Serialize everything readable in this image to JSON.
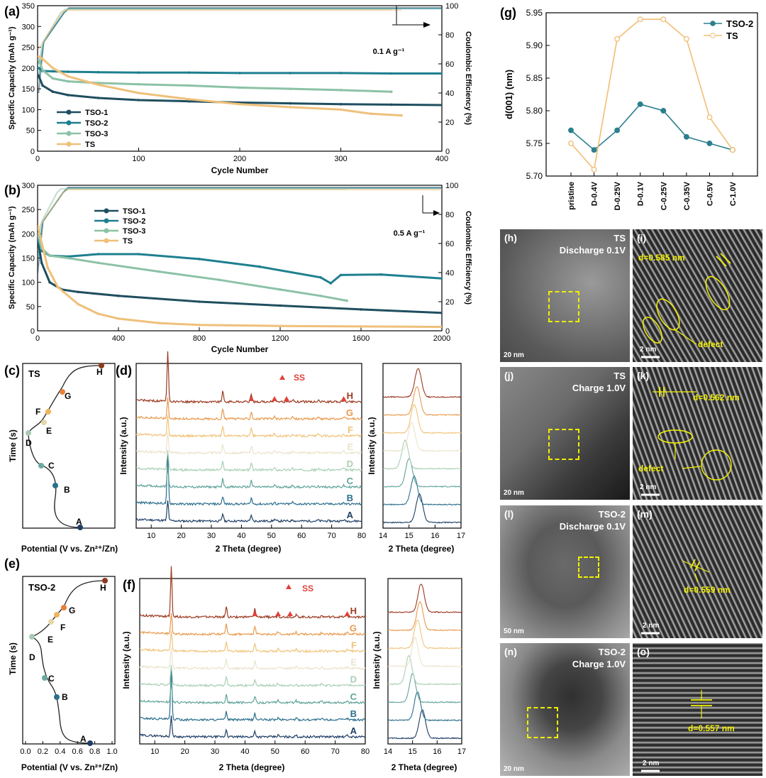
{
  "chart_data": [
    {
      "panel": "a",
      "type": "line",
      "xlabel": "Cycle Number",
      "ylabel": "Specific Capacity (mAh g⁻¹)",
      "ylabel_right": "Coulombic Efficiency (%)",
      "xlim": [
        0,
        400
      ],
      "ylim": [
        0,
        350
      ],
      "ylim_right": [
        0,
        100
      ],
      "xticks": [
        "0",
        "100",
        "200",
        "300",
        "400"
      ],
      "yticks": [
        "0",
        "50",
        "100",
        "150",
        "200",
        "250",
        "300",
        "350"
      ],
      "yticks_right": [
        "0",
        "20",
        "40",
        "60",
        "80",
        "100"
      ],
      "annotation": "0.1 A g⁻¹",
      "series": [
        {
          "name": "TSO-1",
          "color": "#1f4e5f",
          "x": [
            1,
            5,
            15,
            30,
            60,
            100,
            150,
            200,
            250,
            300,
            350,
            400
          ],
          "y": [
            182,
            158,
            143,
            135,
            128,
            123,
            120,
            117,
            115,
            113,
            112,
            111
          ]
        },
        {
          "name": "TSO-2",
          "color": "#1e7f8f",
          "x": [
            1,
            5,
            15,
            30,
            60,
            100,
            150,
            200,
            250,
            300,
            350,
            400
          ],
          "y": [
            200,
            193,
            192,
            191,
            190,
            189,
            189,
            188,
            188,
            188,
            187,
            187
          ]
        },
        {
          "name": "TSO-3",
          "color": "#8cc2a6",
          "x": [
            1,
            5,
            15,
            30,
            60,
            100,
            150,
            200,
            250,
            300,
            350
          ],
          "y": [
            220,
            195,
            175,
            168,
            164,
            161,
            158,
            153,
            150,
            147,
            143
          ]
        },
        {
          "name": "TS",
          "color": "#efc07a",
          "x": [
            1,
            5,
            15,
            30,
            60,
            100,
            150,
            200,
            250,
            300,
            330,
            360
          ],
          "y": [
            228,
            222,
            200,
            180,
            160,
            140,
            125,
            113,
            106,
            100,
            90,
            86
          ]
        }
      ]
    },
    {
      "panel": "b",
      "type": "line",
      "xlabel": "Cycle Number",
      "ylabel": "Specific Capacity (mAh g⁻¹)",
      "ylabel_right": "Coulombic Efficiency (%)",
      "xlim": [
        0,
        2000
      ],
      "ylim": [
        0,
        300
      ],
      "ylim_right": [
        0,
        100
      ],
      "xticks": [
        "0",
        "400",
        "800",
        "1200",
        "1600",
        "2000"
      ],
      "yticks": [
        "0",
        "50",
        "100",
        "150",
        "200",
        "250",
        "300"
      ],
      "yticks_right": [
        "0",
        "20",
        "40",
        "60",
        "80",
        "100"
      ],
      "annotation": "0.5 A g⁻¹",
      "series": [
        {
          "name": "TSO-1",
          "color": "#1f4e5f",
          "x": [
            1,
            20,
            60,
            120,
            200,
            400,
            800,
            1200,
            1600,
            2000
          ],
          "y": [
            190,
            140,
            100,
            85,
            80,
            72,
            60,
            52,
            44,
            37
          ]
        },
        {
          "name": "TSO-2",
          "color": "#1e7f8f",
          "x": [
            1,
            20,
            60,
            150,
            300,
            500,
            800,
            1100,
            1400,
            1450,
            1500,
            1700,
            2000
          ],
          "y": [
            190,
            165,
            155,
            153,
            158,
            158,
            148,
            132,
            110,
            98,
            115,
            116,
            108
          ]
        },
        {
          "name": "TSO-3",
          "color": "#8cc2a6",
          "x": [
            1,
            20,
            60,
            150,
            300,
            600,
            900,
            1200,
            1400,
            1530
          ],
          "y": [
            200,
            170,
            155,
            150,
            140,
            122,
            105,
            85,
            72,
            62
          ]
        },
        {
          "name": "TS",
          "color": "#efc07a",
          "x": [
            1,
            50,
            100,
            200,
            300,
            400,
            600,
            800,
            1200,
            1600,
            2000
          ],
          "y": [
            215,
            130,
            90,
            55,
            35,
            25,
            16,
            12,
            10,
            9,
            8
          ]
        }
      ]
    },
    {
      "panel": "c",
      "type": "line",
      "title": "TS",
      "xlabel": "Potential (V vs. Zn²⁺/Zn)",
      "ylabel": "Time (s)",
      "points": [
        "A",
        "B",
        "C",
        "D",
        "E",
        "F",
        "G",
        "H"
      ]
    },
    {
      "panel": "d",
      "type": "line",
      "xlabel": "2 Theta (degree)",
      "ylabel": "Intensity (a.u.)",
      "xlim": [
        5,
        80
      ],
      "xticks": [
        "10",
        "20",
        "30",
        "40",
        "50",
        "60",
        "70",
        "80"
      ],
      "legend": "SS",
      "traces": [
        "A",
        "B",
        "C",
        "D",
        "E",
        "F",
        "G",
        "H"
      ],
      "inset": {
        "xlabel": "2 Theta (degree)",
        "ylabel": "Intensity (a.u.)",
        "xlim": [
          14,
          17
        ],
        "xticks": [
          "14",
          "15",
          "16",
          "17"
        ]
      }
    },
    {
      "panel": "e",
      "type": "line",
      "title": "TSO-2",
      "xlabel": "Potential (V vs. Zn²⁺/Zn)",
      "ylabel": "Time (s)",
      "xticks": [
        "0.0",
        "0.2",
        "0.4",
        "0.6",
        "0.8",
        "1.0"
      ],
      "points": [
        "A",
        "B",
        "C",
        "D",
        "E",
        "F",
        "G",
        "H"
      ]
    },
    {
      "panel": "f",
      "type": "line",
      "xlabel": "2 Theta (degree)",
      "ylabel": "Intensity (a.u.)",
      "xlim": [
        5,
        80
      ],
      "xticks": [
        "10",
        "20",
        "30",
        "40",
        "50",
        "60",
        "70",
        "80"
      ],
      "legend": "SS",
      "traces": [
        "A",
        "B",
        "C",
        "D",
        "E",
        "F",
        "G",
        "H"
      ],
      "inset": {
        "xlabel": "2 Theta (degree)",
        "ylabel": "Intensity (a.u.)",
        "xlim": [
          14,
          17
        ],
        "xticks": [
          "14",
          "15",
          "16",
          "17"
        ]
      }
    },
    {
      "panel": "g",
      "type": "line",
      "ylabel": "d(001) (nm)",
      "categories": [
        "pristine",
        "D-0.4V",
        "D-0.25V",
        "D-0.1V",
        "C-0.25V",
        "C-0.35V",
        "C-0.5V",
        "C-1.0V"
      ],
      "ylim": [
        5.7,
        5.95
      ],
      "yticks": [
        "5.70",
        "5.75",
        "5.80",
        "5.85",
        "5.90",
        "5.95"
      ],
      "series": [
        {
          "name": "TSO-2",
          "color": "#2b7f8e",
          "values": [
            5.77,
            5.74,
            5.77,
            5.81,
            5.8,
            5.76,
            5.75,
            5.74
          ]
        },
        {
          "name": "TS",
          "color": "#f2bd73",
          "values": [
            5.75,
            5.71,
            5.91,
            5.94,
            5.94,
            5.91,
            5.79,
            5.74
          ]
        }
      ]
    }
  ],
  "tem": {
    "h": {
      "label": "(h)",
      "caption_line1": "TS",
      "caption_line2": "Discharge 0.1V",
      "scalebar": "20 nm"
    },
    "i": {
      "label": "(i)",
      "d_label": "d=0.585 nm",
      "defect": "defect",
      "scalebar": "2 nm"
    },
    "j": {
      "label": "(j)",
      "caption_line1": "TS",
      "caption_line2": "Charge 1.0V",
      "scalebar": "20 nm"
    },
    "k": {
      "label": "(k)",
      "d_label": "d=0.562 nm",
      "defect": "defect",
      "scalebar": "2 nm"
    },
    "l": {
      "label": "(l)",
      "caption_line1": "TSO-2",
      "caption_line2": "Discharge 0.1V",
      "scalebar": "50 nm"
    },
    "m": {
      "label": "(m)",
      "d_label": "d=0.559 nm",
      "scalebar": "2 nm"
    },
    "n": {
      "label": "(n)",
      "caption_line1": "TSO-2",
      "caption_line2": "Charge 1.0V",
      "scalebar": "20 nm"
    },
    "o": {
      "label": "(o)",
      "d_label": "d=0.557 nm",
      "scalebar": "2 nm"
    }
  },
  "colors": {
    "tso1": "#1f4e5f",
    "tso2": "#1e7f8f",
    "tso3": "#8cc2a6",
    "ts": "#efc07a",
    "ss": "#e0413c",
    "annotation": "#f2f000"
  }
}
